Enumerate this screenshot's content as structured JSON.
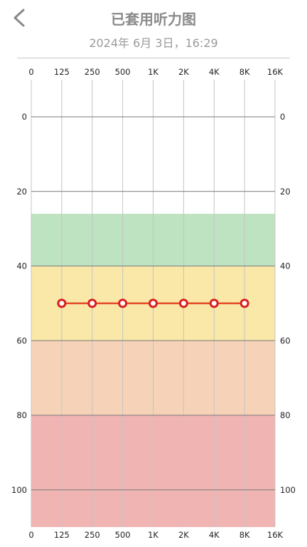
{
  "header": {
    "title": "已套用听力图",
    "date": "2024年 6月 3日，16:29"
  },
  "icons": {
    "back": "chevron-left-icon"
  },
  "colors": {
    "zone_mild": "#bde3c0",
    "zone_moderate": "#f9e8a7",
    "zone_severe": "#f6d3b8",
    "zone_profound": "#f0b4b3",
    "line": "#e44b2b",
    "marker": "#d91f1f"
  },
  "chart_data": {
    "type": "line",
    "x_ticks": [
      "0",
      "125",
      "250",
      "500",
      "1K",
      "2K",
      "4K",
      "8K",
      "16K"
    ],
    "y_ticks": [
      0,
      20,
      40,
      60,
      80,
      100
    ],
    "ylim": [
      -10,
      110
    ],
    "y_inverted": true,
    "zones": [
      {
        "from": 26,
        "to": 40,
        "color": "#bde3c0"
      },
      {
        "from": 40,
        "to": 60,
        "color": "#f9e8a7"
      },
      {
        "from": 60,
        "to": 80,
        "color": "#f6d3b8"
      },
      {
        "from": 80,
        "to": 110,
        "color": "#f0b4b3"
      }
    ],
    "series": [
      {
        "x": [
          "125",
          "250",
          "500",
          "1K",
          "2K",
          "4K",
          "8K"
        ],
        "values": [
          50,
          50,
          50,
          50,
          50,
          50,
          50
        ]
      }
    ]
  }
}
